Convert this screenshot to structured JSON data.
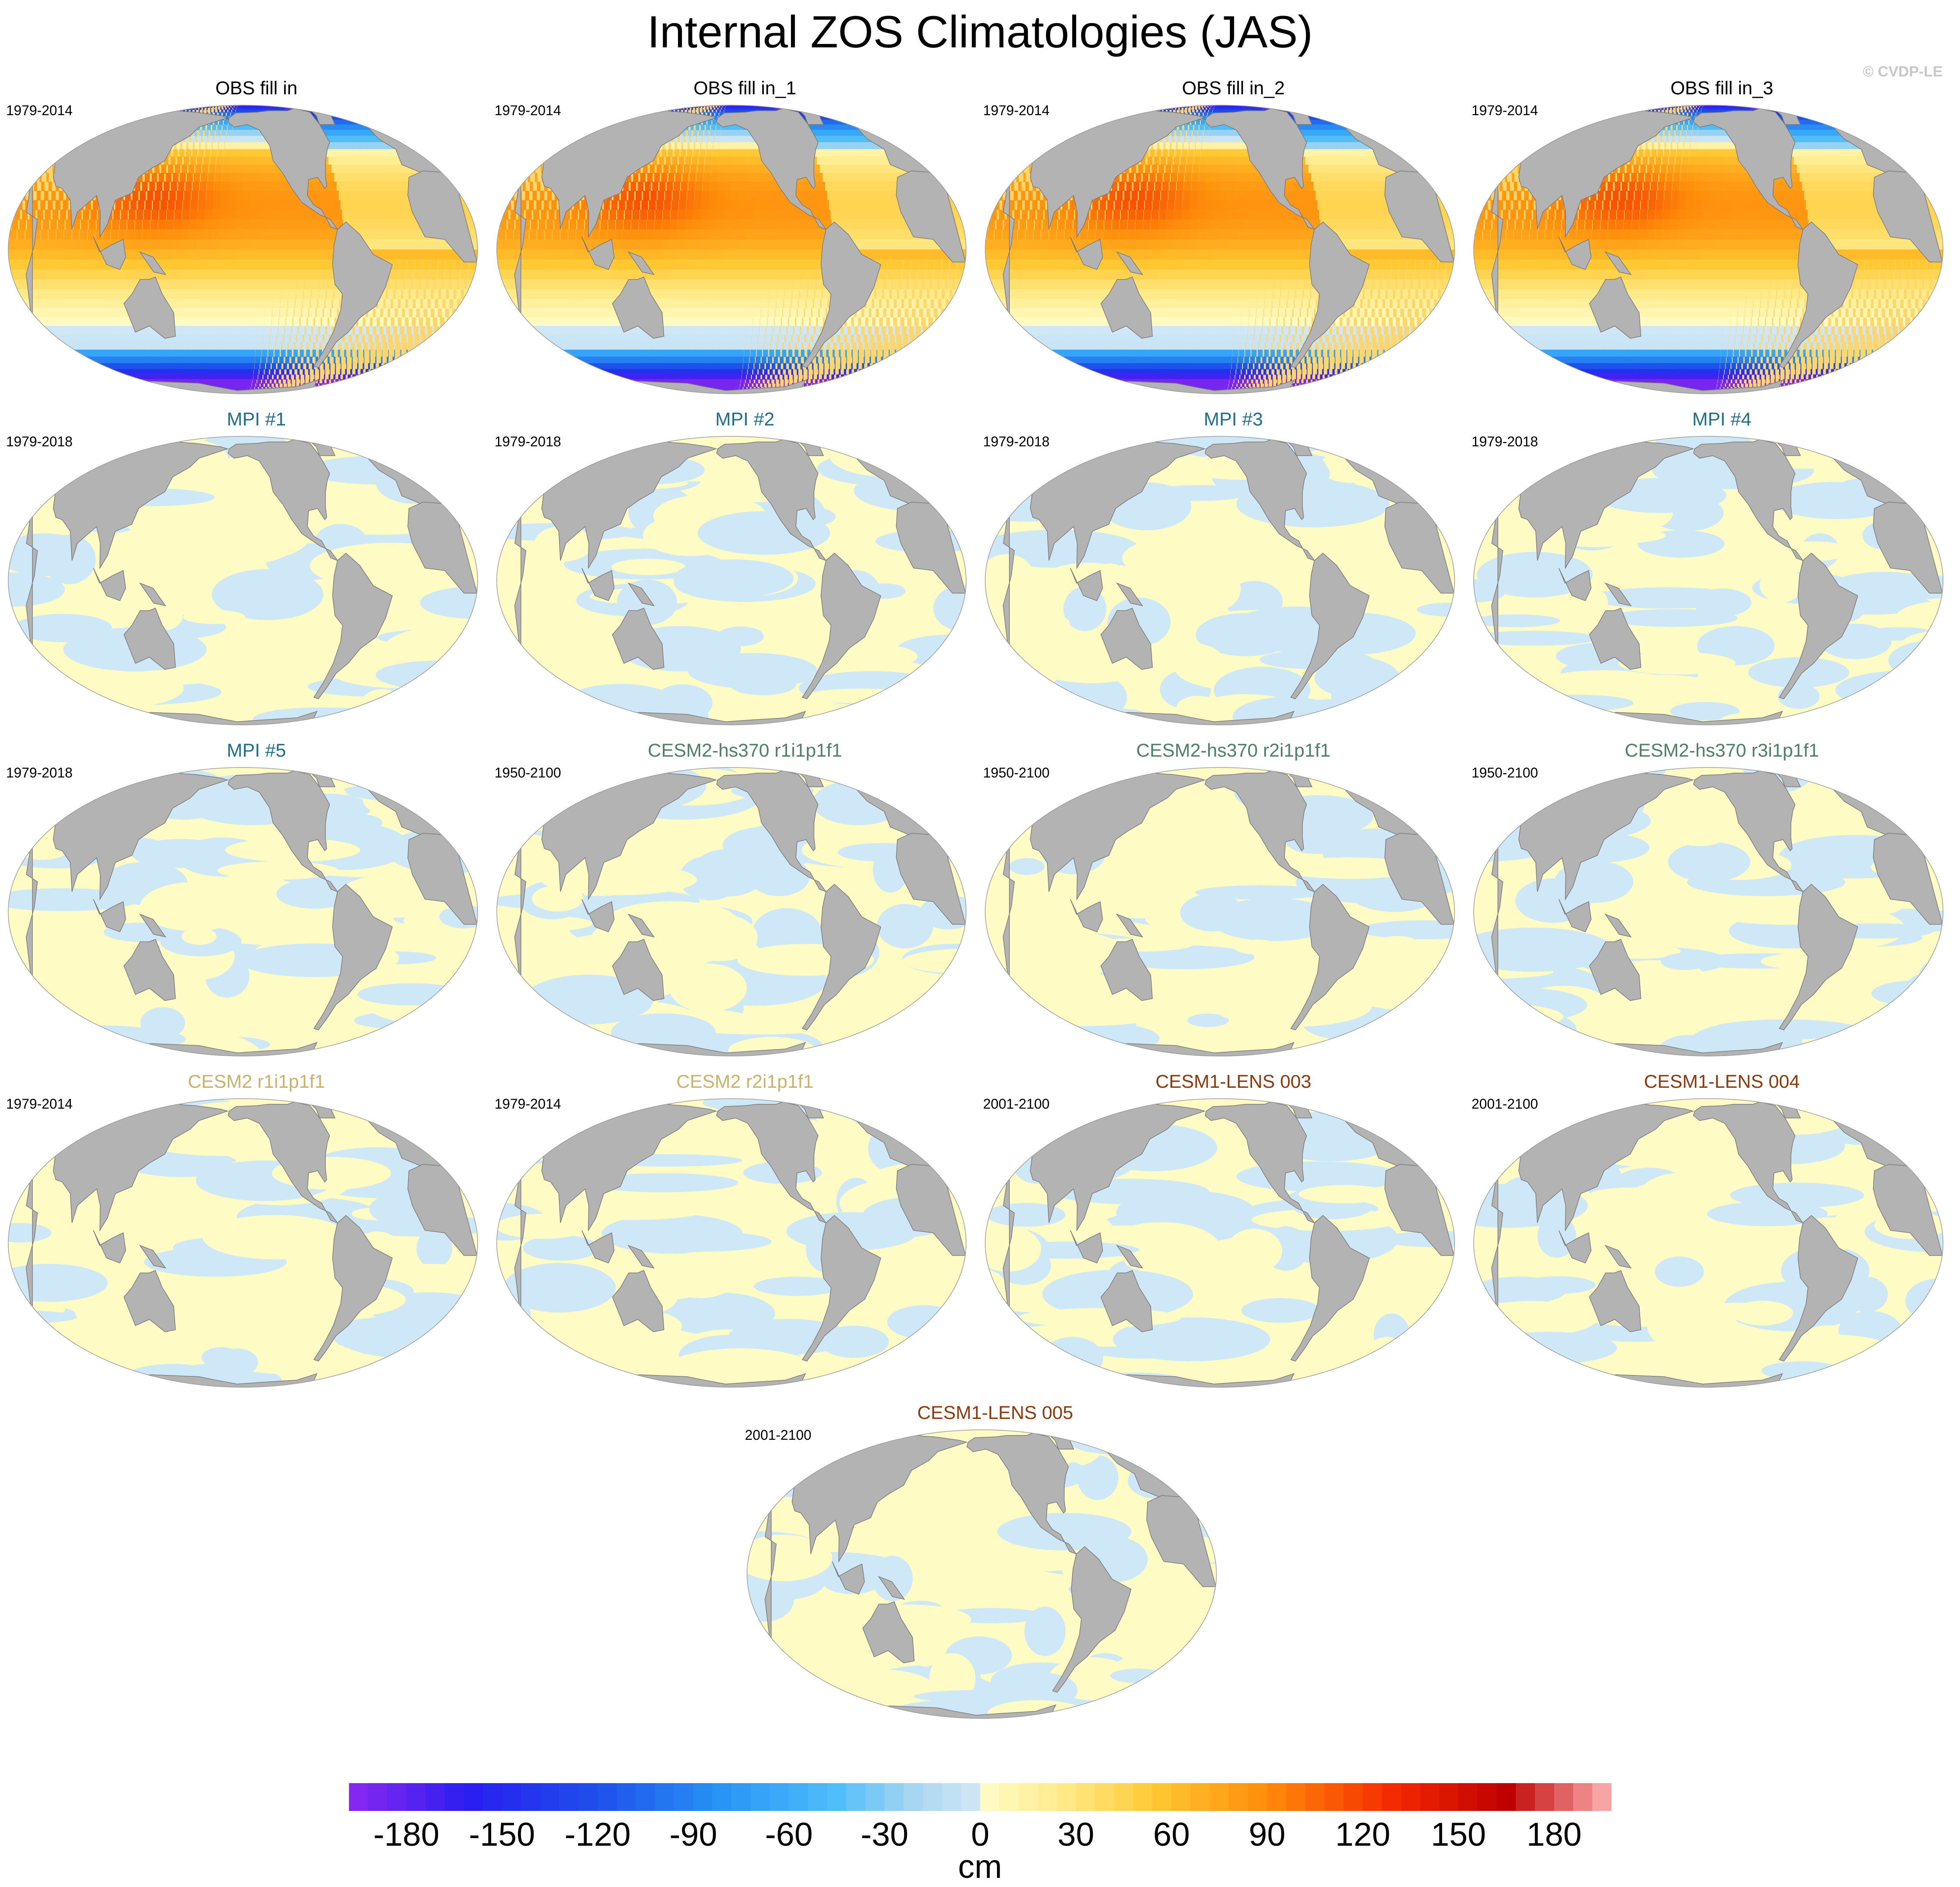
{
  "title": "Internal ZOS Climatologies (JAS)",
  "copyright": "© CVDP-LE",
  "panels": [
    {
      "title": "OBS fill in",
      "period": "1979-2014",
      "title_color": "#000000",
      "field": "obs"
    },
    {
      "title": "OBS fill in_1",
      "period": "1979-2014",
      "title_color": "#000000",
      "field": "obs"
    },
    {
      "title": "OBS fill in_2",
      "period": "1979-2014",
      "title_color": "#000000",
      "field": "obs"
    },
    {
      "title": "OBS fill in_3",
      "period": "1979-2014",
      "title_color": "#000000",
      "field": "obs"
    },
    {
      "title": "MPI #1",
      "period": "1979-2018",
      "title_color": "#1f6f8b",
      "field": "anom"
    },
    {
      "title": "MPI #2",
      "period": "1979-2018",
      "title_color": "#1f6f8b",
      "field": "anom"
    },
    {
      "title": "MPI #3",
      "period": "1979-2018",
      "title_color": "#1f6f8b",
      "field": "anom"
    },
    {
      "title": "MPI #4",
      "period": "1979-2018",
      "title_color": "#1f6f8b",
      "field": "anom"
    },
    {
      "title": "MPI #5",
      "period": "1979-2018",
      "title_color": "#1f6f8b",
      "field": "anom"
    },
    {
      "title": "CESM2-hs370 r1i1p1f1",
      "period": "1950-2100",
      "title_color": "#4f7f68",
      "field": "anom"
    },
    {
      "title": "CESM2-hs370 r2i1p1f1",
      "period": "1950-2100",
      "title_color": "#4f7f68",
      "field": "anom"
    },
    {
      "title": "CESM2-hs370 r3i1p1f1",
      "period": "1950-2100",
      "title_color": "#4f7f68",
      "field": "anom"
    },
    {
      "title": "CESM2 r1i1p1f1",
      "period": "1979-2014",
      "title_color": "#c9b36b",
      "field": "anom"
    },
    {
      "title": "CESM2 r2i1p1f1",
      "period": "1979-2014",
      "title_color": "#c9b36b",
      "field": "anom"
    },
    {
      "title": "CESM1-LENS 003",
      "period": "2001-2100",
      "title_color": "#8b3a0e",
      "field": "anom"
    },
    {
      "title": "CESM1-LENS 004",
      "period": "2001-2100",
      "title_color": "#8b3a0e",
      "field": "anom"
    },
    {
      "title": "CESM1-LENS 005",
      "period": "2001-2100",
      "title_color": "#8b3a0e",
      "field": "anom"
    }
  ],
  "colorbar": {
    "unit": "cm",
    "min": -198,
    "max": 198,
    "step": 6,
    "ticks": [
      "-180",
      "-150",
      "-120",
      "-90",
      "-60",
      "-30",
      "0",
      "30",
      "60",
      "90",
      "120",
      "150",
      "180"
    ]
  },
  "colors": {
    "land": "#b3b3b3",
    "coast": "#7a7a7a",
    "negative_small": "#cfe8f7",
    "positive_small": "#fffbc4"
  }
}
